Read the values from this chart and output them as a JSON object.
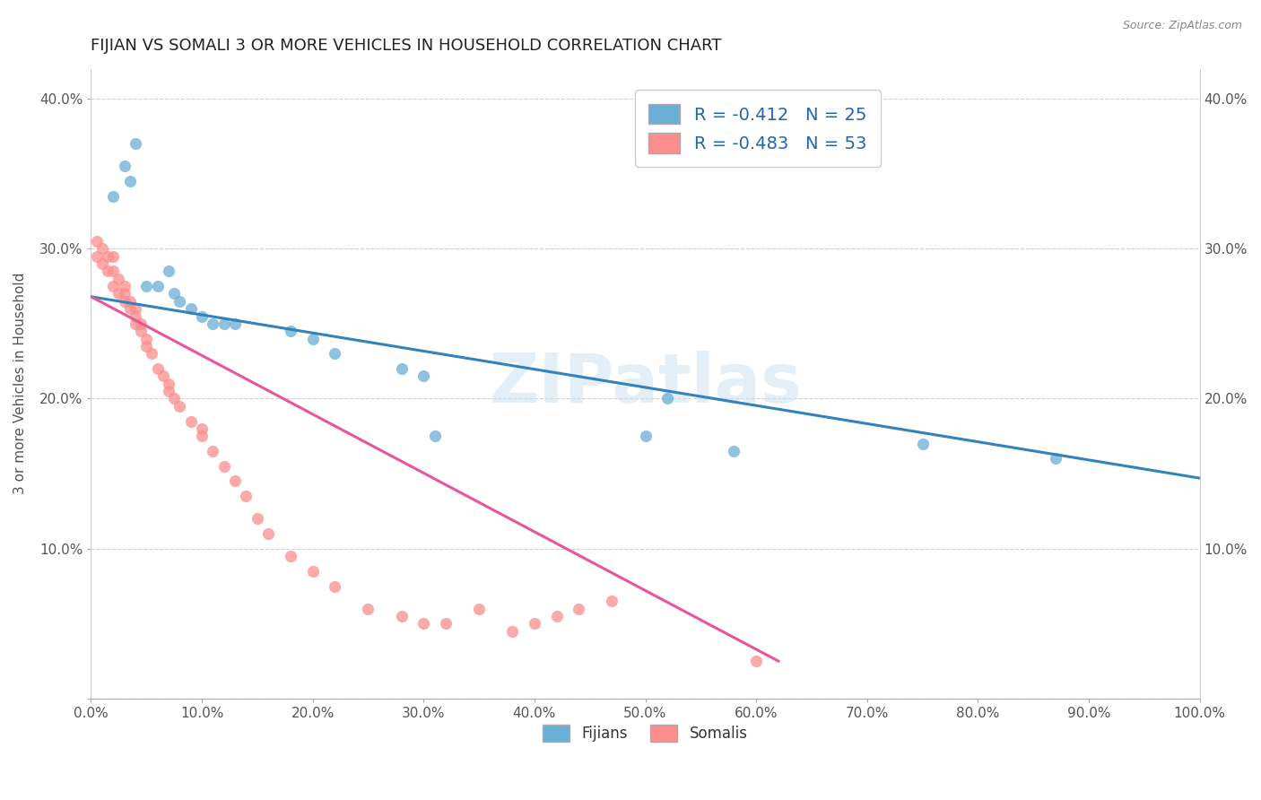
{
  "title": "FIJIAN VS SOMALI 3 OR MORE VEHICLES IN HOUSEHOLD CORRELATION CHART",
  "source": "Source: ZipAtlas.com",
  "ylabel": "3 or more Vehicles in Household",
  "xlabel": "",
  "xlim": [
    0,
    1.0
  ],
  "ylim": [
    0,
    0.42
  ],
  "xticks": [
    0.0,
    0.1,
    0.2,
    0.3,
    0.4,
    0.5,
    0.6,
    0.7,
    0.8,
    0.9,
    1.0
  ],
  "xticklabels": [
    "0.0%",
    "10.0%",
    "20.0%",
    "30.0%",
    "40.0%",
    "50.0%",
    "60.0%",
    "70.0%",
    "80.0%",
    "90.0%",
    "100.0%"
  ],
  "yticks": [
    0.0,
    0.1,
    0.2,
    0.3,
    0.4
  ],
  "yticklabels": [
    "",
    "10.0%",
    "20.0%",
    "30.0%",
    "40.0%"
  ],
  "fijian_color": "#6baed6",
  "somali_color": "#fc8d8d",
  "fijian_line_color": "#3182bd",
  "somali_line_color": "#e8559a",
  "fijian_R": -0.412,
  "fijian_N": 25,
  "somali_R": -0.483,
  "somali_N": 53,
  "legend_R_color": "#2166ac",
  "legend_N_color": "#333333",
  "watermark": "ZIPatlas",
  "fijian_scatter_x": [
    0.02,
    0.03,
    0.035,
    0.04,
    0.05,
    0.06,
    0.07,
    0.075,
    0.08,
    0.09,
    0.1,
    0.11,
    0.12,
    0.13,
    0.18,
    0.2,
    0.22,
    0.28,
    0.3,
    0.31,
    0.5,
    0.52,
    0.58,
    0.75,
    0.87
  ],
  "fijian_scatter_y": [
    0.335,
    0.355,
    0.345,
    0.37,
    0.275,
    0.275,
    0.285,
    0.27,
    0.265,
    0.26,
    0.255,
    0.25,
    0.25,
    0.25,
    0.245,
    0.24,
    0.23,
    0.22,
    0.215,
    0.175,
    0.175,
    0.2,
    0.165,
    0.17,
    0.16
  ],
  "somali_scatter_x": [
    0.005,
    0.005,
    0.01,
    0.01,
    0.015,
    0.015,
    0.02,
    0.02,
    0.02,
    0.025,
    0.025,
    0.03,
    0.03,
    0.03,
    0.035,
    0.035,
    0.04,
    0.04,
    0.04,
    0.045,
    0.045,
    0.05,
    0.05,
    0.055,
    0.06,
    0.065,
    0.07,
    0.07,
    0.075,
    0.08,
    0.09,
    0.1,
    0.1,
    0.11,
    0.12,
    0.13,
    0.14,
    0.15,
    0.16,
    0.18,
    0.2,
    0.22,
    0.25,
    0.28,
    0.3,
    0.32,
    0.35,
    0.38,
    0.4,
    0.42,
    0.44,
    0.47,
    0.6
  ],
  "somali_scatter_y": [
    0.295,
    0.305,
    0.29,
    0.3,
    0.285,
    0.295,
    0.275,
    0.285,
    0.295,
    0.27,
    0.28,
    0.265,
    0.27,
    0.275,
    0.26,
    0.265,
    0.25,
    0.255,
    0.26,
    0.245,
    0.25,
    0.235,
    0.24,
    0.23,
    0.22,
    0.215,
    0.205,
    0.21,
    0.2,
    0.195,
    0.185,
    0.175,
    0.18,
    0.165,
    0.155,
    0.145,
    0.135,
    0.12,
    0.11,
    0.095,
    0.085,
    0.075,
    0.06,
    0.055,
    0.05,
    0.05,
    0.06,
    0.045,
    0.05,
    0.055,
    0.06,
    0.065,
    0.025
  ],
  "fijian_trend_x": [
    0.0,
    1.0
  ],
  "fijian_trend_y": [
    0.268,
    0.147
  ],
  "somali_trend_x": [
    0.0,
    0.62
  ],
  "somali_trend_y": [
    0.268,
    0.025
  ],
  "background_color": "#ffffff",
  "grid_color": "#cccccc",
  "title_fontsize": 13,
  "axis_label_fontsize": 11,
  "tick_fontsize": 11
}
